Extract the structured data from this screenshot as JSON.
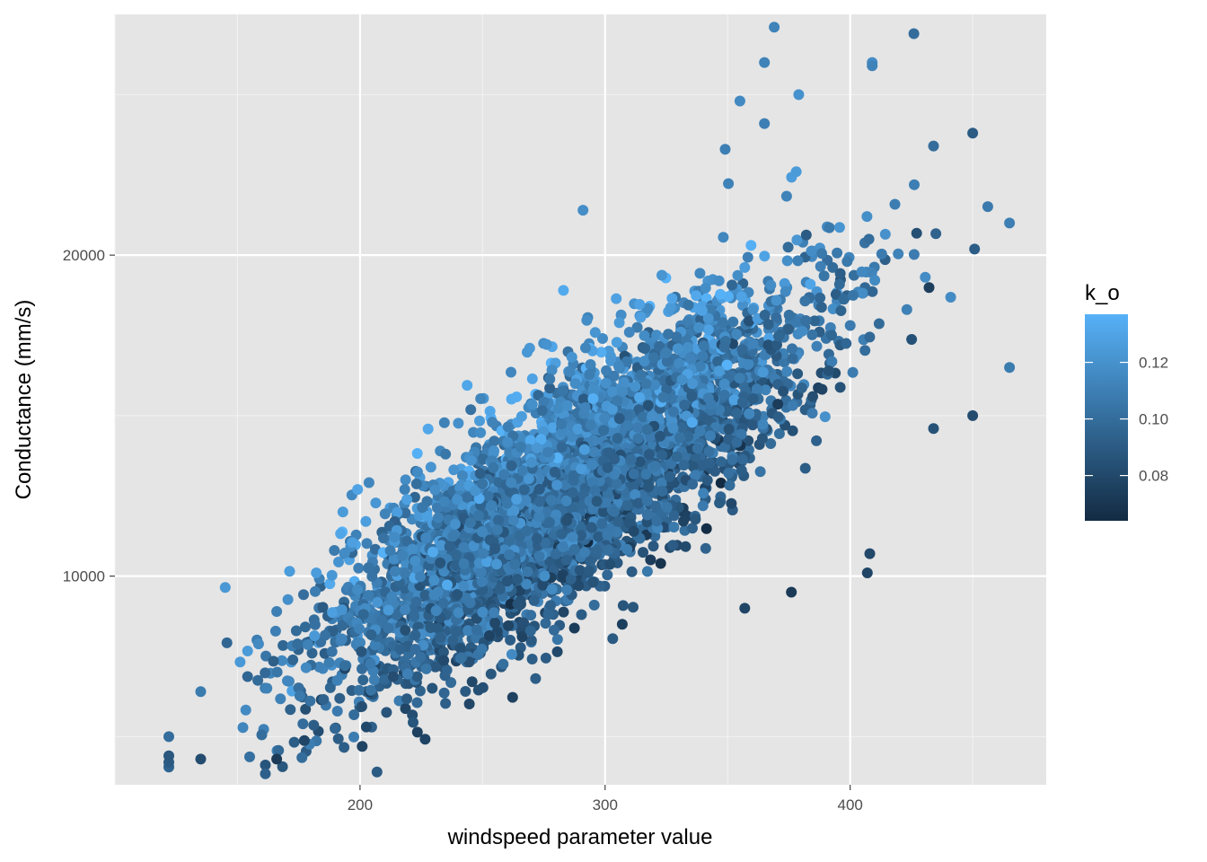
{
  "chart_data": {
    "type": "scatter",
    "title": "",
    "xlabel": "windspeed parameter value",
    "ylabel": "Conductance (mm/s)",
    "xlim": [
      100,
      480
    ],
    "ylim": [
      3500,
      27500
    ],
    "x_ticks": [
      200,
      300,
      400
    ],
    "x_tick_labels": [
      "200",
      "300",
      "400"
    ],
    "y_ticks": [
      10000,
      20000
    ],
    "y_tick_labels": [
      "10000",
      "20000"
    ],
    "grid": true,
    "color_variable": "k_o",
    "colorbar": {
      "title": "k_o",
      "range": [
        0.064,
        0.137
      ],
      "ticks": [
        0.08,
        0.1,
        0.12
      ],
      "tick_labels": [
        "0.08",
        "0.10",
        "0.12"
      ],
      "low_color": "#132B43",
      "high_color": "#56B1F7",
      "placement": "right"
    },
    "generated_cloud": {
      "n_points": 4800,
      "x_center": 285,
      "x_sd": 47,
      "x_min": 122,
      "x_max": 465,
      "y_at_x200": 8400,
      "y_slope_per_unit_x": 51,
      "y_sd": 1650,
      "k_o_center": 0.104,
      "k_o_sd": 0.0105,
      "k_o_y_coupling": 3.5e-06
    },
    "points": [
      {
        "x": 122,
        "y": 4050,
        "k_o": 0.095
      },
      {
        "x": 122,
        "y": 4200,
        "k_o": 0.09
      },
      {
        "x": 122,
        "y": 4400,
        "k_o": 0.088
      },
      {
        "x": 122,
        "y": 5000,
        "k_o": 0.1
      },
      {
        "x": 135,
        "y": 4300,
        "k_o": 0.082
      },
      {
        "x": 135,
        "y": 6400,
        "k_o": 0.108
      },
      {
        "x": 166,
        "y": 4300,
        "k_o": 0.072
      },
      {
        "x": 166,
        "y": 8900,
        "k_o": 0.11
      },
      {
        "x": 193,
        "y": 12000,
        "k_o": 0.125
      },
      {
        "x": 199,
        "y": 12700,
        "k_o": 0.13
      },
      {
        "x": 283,
        "y": 18900,
        "k_o": 0.133
      },
      {
        "x": 291,
        "y": 21400,
        "k_o": 0.118
      },
      {
        "x": 349,
        "y": 23300,
        "k_o": 0.11
      },
      {
        "x": 355,
        "y": 24800,
        "k_o": 0.115
      },
      {
        "x": 365,
        "y": 26000,
        "k_o": 0.112
      },
      {
        "x": 365,
        "y": 24100,
        "k_o": 0.11
      },
      {
        "x": 369,
        "y": 27100,
        "k_o": 0.112
      },
      {
        "x": 379,
        "y": 25000,
        "k_o": 0.12
      },
      {
        "x": 378,
        "y": 22600,
        "k_o": 0.125
      },
      {
        "x": 409,
        "y": 26000,
        "k_o": 0.117
      },
      {
        "x": 409,
        "y": 25900,
        "k_o": 0.112
      },
      {
        "x": 426,
        "y": 26900,
        "k_o": 0.1
      },
      {
        "x": 434,
        "y": 23400,
        "k_o": 0.1
      },
      {
        "x": 450,
        "y": 23800,
        "k_o": 0.09
      },
      {
        "x": 465,
        "y": 21000,
        "k_o": 0.11
      },
      {
        "x": 465,
        "y": 16500,
        "k_o": 0.108
      },
      {
        "x": 450,
        "y": 15000,
        "k_o": 0.082
      },
      {
        "x": 434,
        "y": 14600,
        "k_o": 0.085
      },
      {
        "x": 408,
        "y": 10700,
        "k_o": 0.08
      },
      {
        "x": 407,
        "y": 10100,
        "k_o": 0.078
      },
      {
        "x": 376,
        "y": 9500,
        "k_o": 0.072
      },
      {
        "x": 357,
        "y": 9000,
        "k_o": 0.078
      },
      {
        "x": 307,
        "y": 8500,
        "k_o": 0.075
      }
    ]
  }
}
